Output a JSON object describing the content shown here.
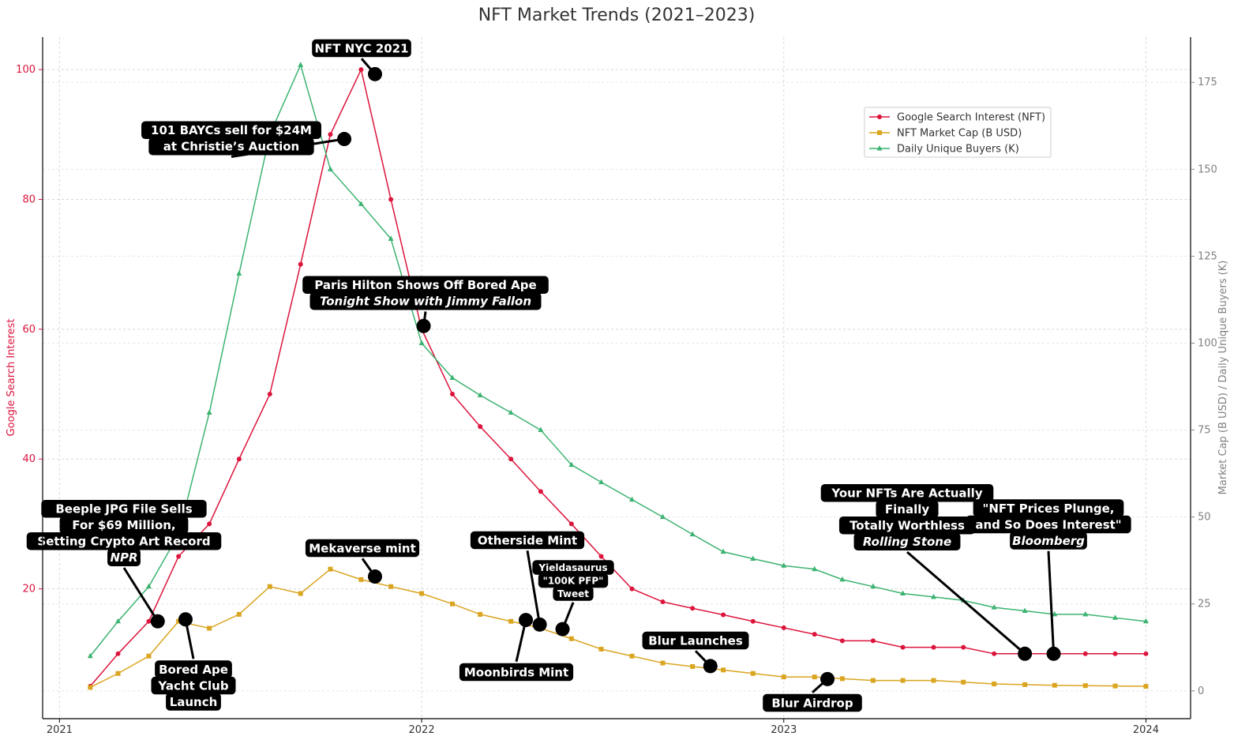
{
  "chart_data": {
    "type": "line",
    "title": "NFT Market Trends (2021–2023)",
    "ylabel_left": "Google Search Interest",
    "ylabel_right": "Market Cap (B USD) / Daily Unique Buyers (K)",
    "x_ticks": [
      "2021",
      "2022",
      "2023",
      "2024"
    ],
    "y_left_ticks": [
      20,
      40,
      60,
      80,
      100
    ],
    "y_right_ticks": [
      0,
      25,
      50,
      75,
      100,
      125,
      150,
      175
    ],
    "x_range": [
      "2020-12-15",
      "2024-02-15"
    ],
    "y_left_range": [
      0,
      105
    ],
    "y_right_range": [
      -8,
      188
    ],
    "grid": true,
    "legend_position": "top-right",
    "colors": {
      "search": "#dc143c",
      "market_cap": "#daa520",
      "buyers": "#3cb371",
      "left_axis": "#dc143c",
      "right_axis": "#808080",
      "annotation_bg": "#000000",
      "annotation_text": "#ffffff"
    },
    "x_dates": [
      "2021-02-01",
      "2021-03-01",
      "2021-04-01",
      "2021-05-01",
      "2021-06-01",
      "2021-07-01",
      "2021-08-01",
      "2021-09-01",
      "2021-10-01",
      "2021-11-01",
      "2021-12-01",
      "2022-01-01",
      "2022-02-01",
      "2022-03-01",
      "2022-04-01",
      "2022-05-01",
      "2022-06-01",
      "2022-07-01",
      "2022-08-01",
      "2022-09-01",
      "2022-10-01",
      "2022-11-01",
      "2022-12-01",
      "2023-01-01",
      "2023-02-01",
      "2023-03-01",
      "2023-04-01",
      "2023-05-01",
      "2023-06-01",
      "2023-07-01",
      "2023-08-01",
      "2023-09-01",
      "2023-10-01",
      "2023-11-01",
      "2023-12-01",
      "2024-01-01"
    ],
    "series": [
      {
        "name": "Google Search Interest (NFT)",
        "axis": "left",
        "marker": "circle",
        "values": [
          5,
          10,
          15,
          25,
          30,
          40,
          50,
          70,
          90,
          100,
          80,
          60,
          50,
          45,
          40,
          35,
          30,
          25,
          20,
          18,
          17,
          16,
          15,
          14,
          13,
          12,
          12,
          11,
          11,
          11,
          10,
          10,
          10,
          10,
          10,
          10
        ]
      },
      {
        "name": "NFT Market Cap (B USD)",
        "axis": "right",
        "marker": "square",
        "values": [
          1,
          5,
          10,
          20,
          18,
          22,
          30,
          28,
          35,
          32,
          30,
          28,
          25,
          22,
          20,
          18,
          15,
          12,
          10,
          8,
          7,
          6,
          5,
          4,
          4,
          3.5,
          3,
          3,
          3,
          2.5,
          2,
          1.8,
          1.6,
          1.5,
          1.4,
          1.3
        ]
      },
      {
        "name": "Daily Unique Buyers (K)",
        "axis": "right",
        "marker": "triangle",
        "values": [
          10,
          20,
          30,
          45,
          80,
          120,
          160,
          180,
          150,
          140,
          130,
          100,
          90,
          85,
          80,
          75,
          65,
          60,
          55,
          50,
          45,
          40,
          38,
          36,
          35,
          32,
          30,
          28,
          27,
          26,
          24,
          23,
          22,
          22,
          21,
          20
        ]
      }
    ],
    "annotations": [
      {
        "lines": [
          "NFT NYC 2021"
        ],
        "dot": [
          "2021-11-15",
          99.3
        ]
      },
      {
        "lines": [
          "101 BAYCs sell for $24M",
          "at Christie’s Auction"
        ],
        "dot": [
          "2021-10-15",
          89.3
        ]
      },
      {
        "lines": [
          "Paris Hilton Shows Off Bored Ape",
          "Tonight Show with Jimmy Fallon"
        ],
        "italic_line": 1,
        "dot": [
          "2022-01-03",
          60.5
        ]
      },
      {
        "lines": [
          "Beeple JPG File Sells",
          "For $69 Million,",
          "Setting Crypto Art Record",
          "NPR"
        ],
        "italic_line": 3,
        "dot": [
          "2021-04-10",
          15.0
        ]
      },
      {
        "lines": [
          "Bored Ape",
          "Yacht Club",
          "Launch"
        ],
        "dot": [
          "2021-05-08",
          15.3
        ]
      },
      {
        "lines": [
          "Mekaverse mint"
        ],
        "dot": [
          "2021-11-15",
          21.9
        ]
      },
      {
        "lines": [
          "Otherside Mint"
        ],
        "dot": [
          "2022-04-30",
          14.5
        ]
      },
      {
        "lines": [
          "Yieldasaurus",
          "\"100K PFP\"",
          "Tweet"
        ],
        "dot": [
          "2022-05-23",
          13.8
        ]
      },
      {
        "lines": [
          "Moonbirds Mint"
        ],
        "dot": [
          "2022-04-16",
          15.2
        ]
      },
      {
        "lines": [
          "Blur Launches"
        ],
        "dot": [
          "2022-10-19",
          8.1
        ]
      },
      {
        "lines": [
          "Blur Airdrop"
        ],
        "dot": [
          "2023-02-14",
          6.1
        ]
      },
      {
        "lines": [
          "Your NFTs Are Actually",
          "Finally",
          "Totally Worthless",
          "Rolling Stone"
        ],
        "italic_line": 3,
        "dot": [
          "2023-09-01",
          10.0
        ]
      },
      {
        "lines": [
          "\"NFT Prices Plunge,",
          "and So Does Interest\"",
          "Bloomberg"
        ],
        "italic_line": 2,
        "dot": [
          "2023-09-30",
          10.0
        ]
      }
    ]
  }
}
